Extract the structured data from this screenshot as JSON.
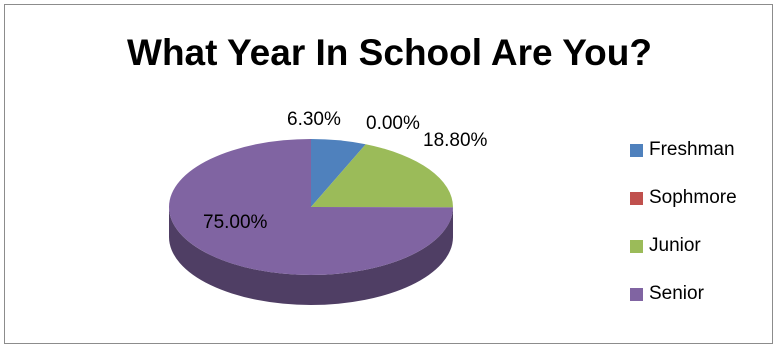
{
  "chart_data": {
    "type": "pie",
    "title": "What Year In School Are You?",
    "categories": [
      "Freshman",
      "Sophmore",
      "Junior",
      "Senior"
    ],
    "values": [
      6.3,
      0.0,
      18.8,
      75.0
    ],
    "data_labels": [
      "6.30%",
      "0.00%",
      "18.80%",
      "75.00%"
    ],
    "colors": [
      "#4f81bd",
      "#c0504d",
      "#9bbb59",
      "#8064a2"
    ],
    "legend_position": "right",
    "style": "3d"
  }
}
